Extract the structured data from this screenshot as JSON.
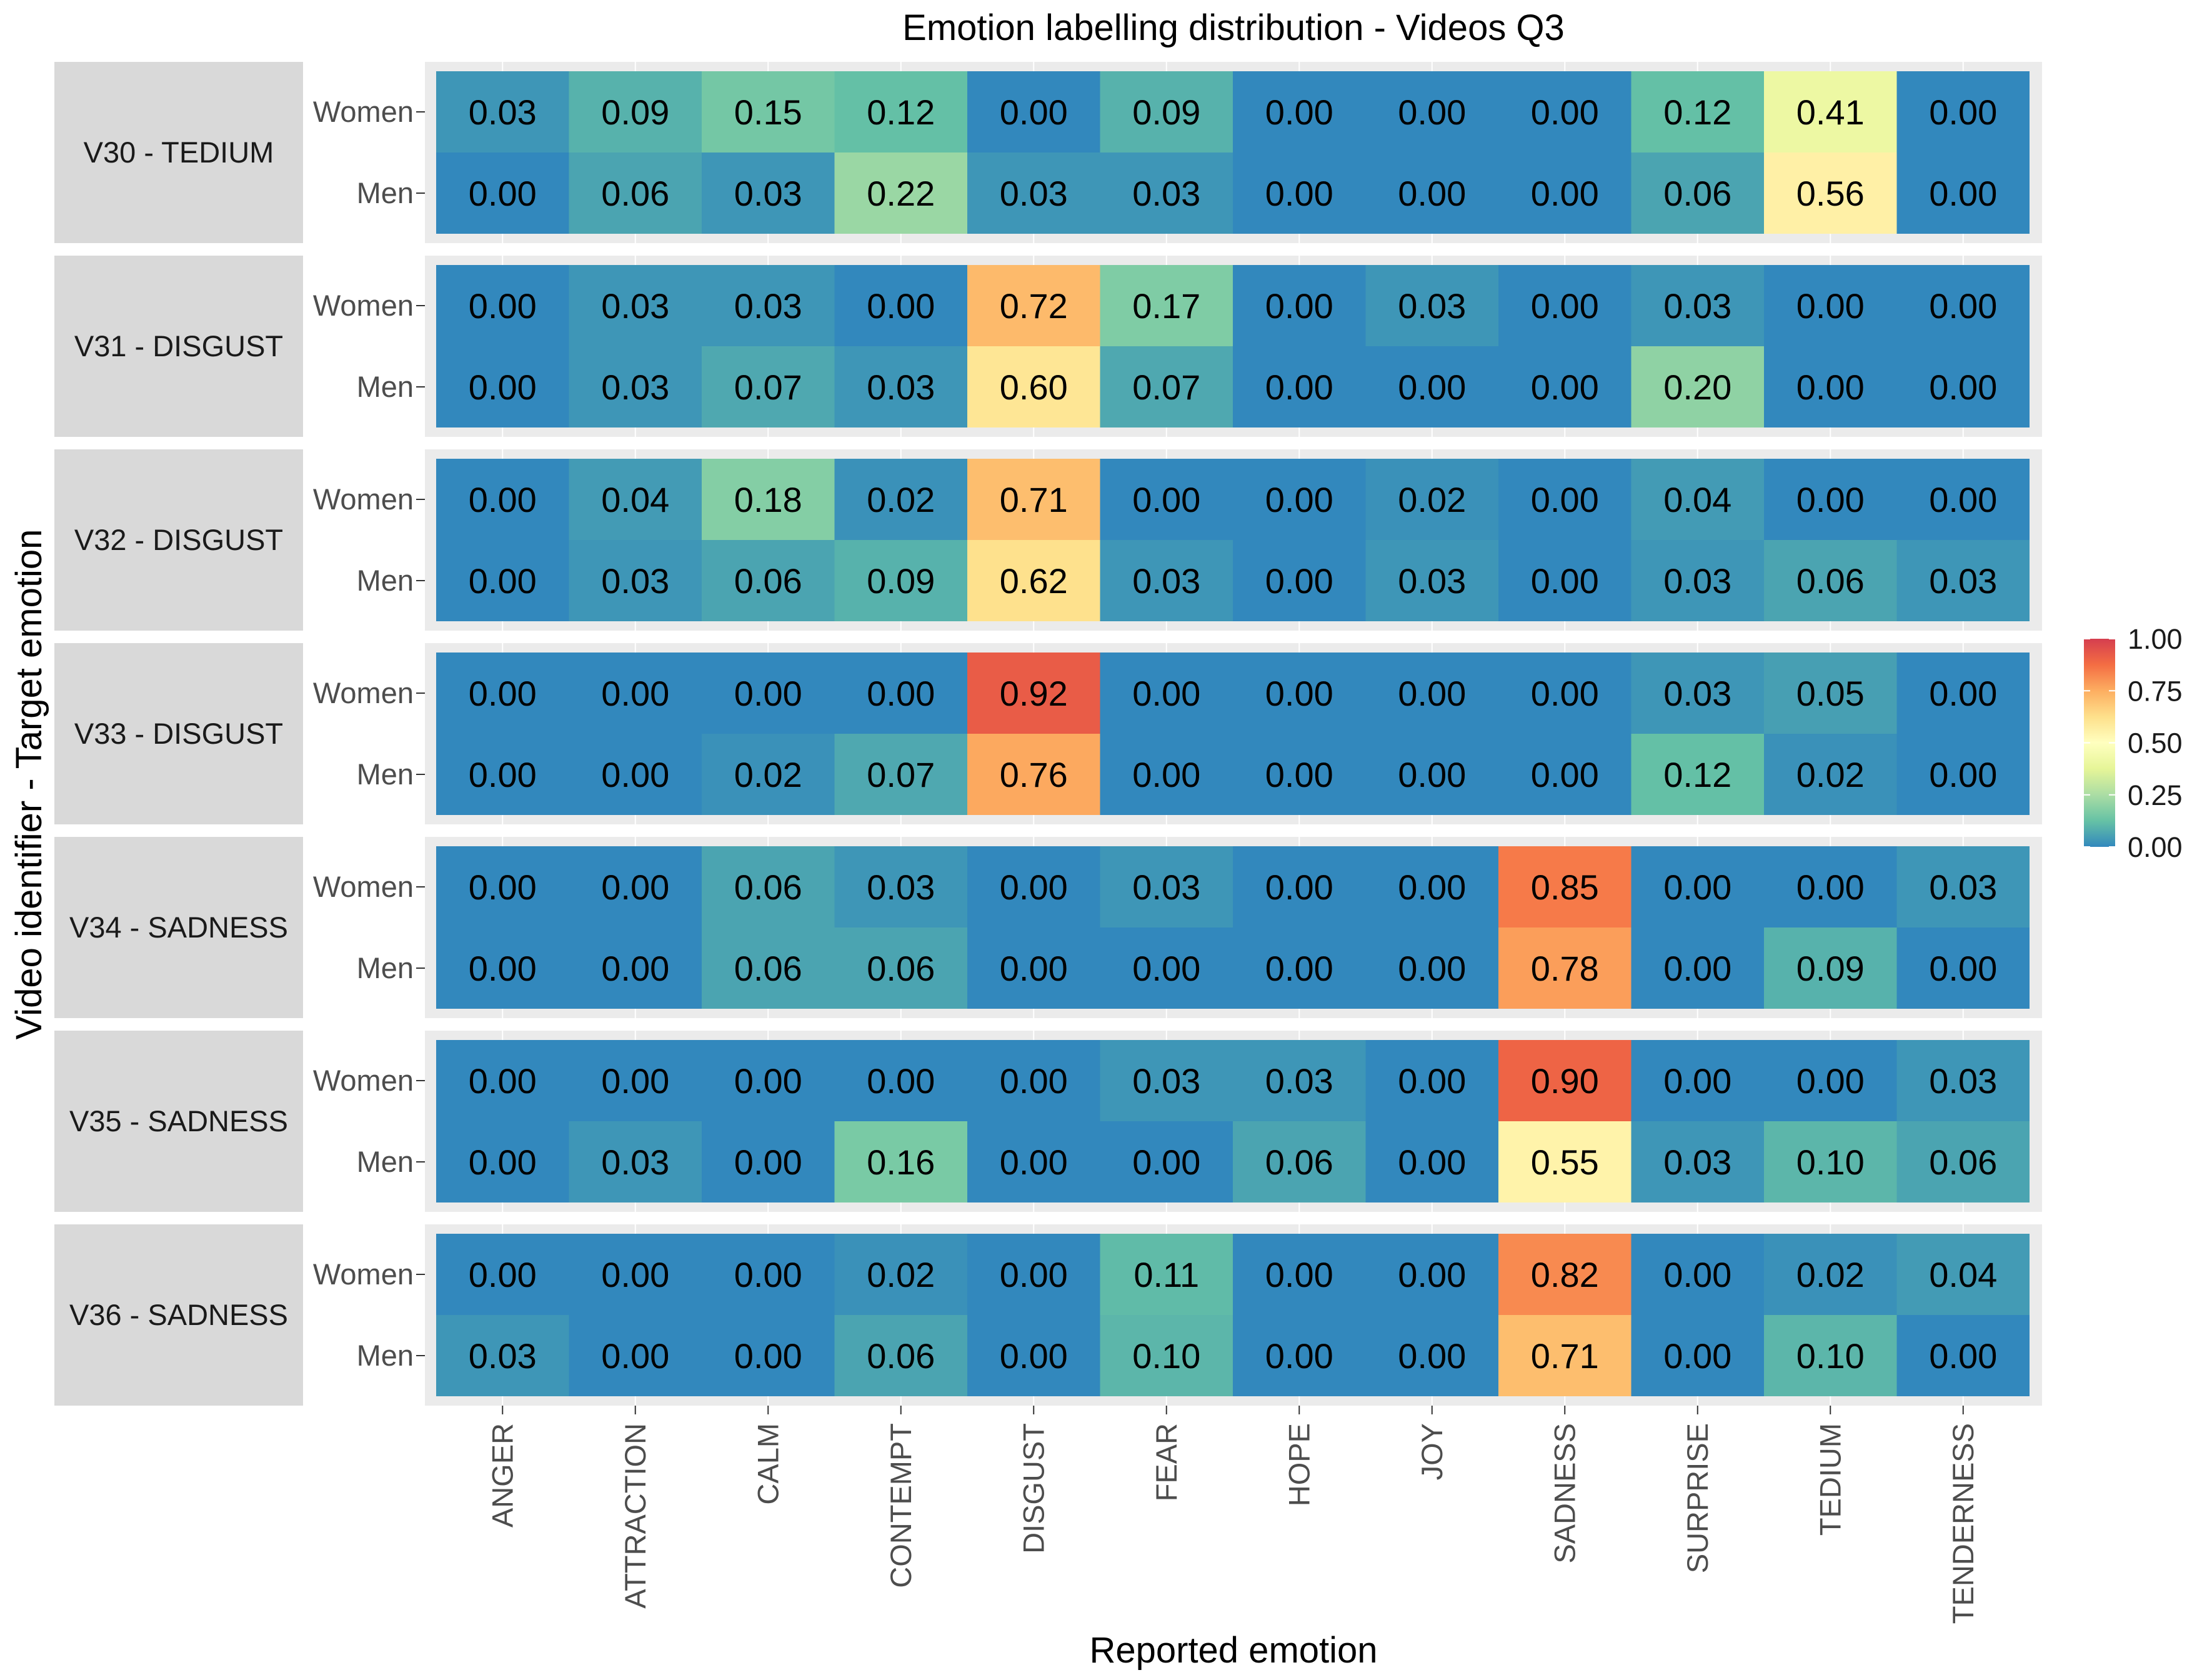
{
  "chart_data": {
    "type": "heatmap",
    "title": "Emotion labelling distribution - Videos Q3",
    "xlabel": "Reported emotion",
    "ylabel": "Video identifier - Target emotion",
    "categories": [
      "ANGER",
      "ATTRACTION",
      "CALM",
      "CONTEMPT",
      "DISGUST",
      "FEAR",
      "HOPE",
      "JOY",
      "SADNESS",
      "SURPRISE",
      "TEDIUM",
      "TENDERNESS"
    ],
    "row_labels": [
      "Women",
      "Men"
    ],
    "facets": [
      {
        "label": "V30 - TEDIUM",
        "rows": [
          {
            "name": "Women",
            "values": [
              0.03,
              0.09,
              0.15,
              0.12,
              0.0,
              0.09,
              0.0,
              0.0,
              0.0,
              0.12,
              0.41,
              0.0
            ]
          },
          {
            "name": "Men",
            "values": [
              0.0,
              0.06,
              0.03,
              0.22,
              0.03,
              0.03,
              0.0,
              0.0,
              0.0,
              0.06,
              0.56,
              0.0
            ]
          }
        ]
      },
      {
        "label": "V31 - DISGUST",
        "rows": [
          {
            "name": "Women",
            "values": [
              0.0,
              0.03,
              0.03,
              0.0,
              0.72,
              0.17,
              0.0,
              0.03,
              0.0,
              0.03,
              0.0,
              0.0
            ]
          },
          {
            "name": "Men",
            "values": [
              0.0,
              0.03,
              0.07,
              0.03,
              0.6,
              0.07,
              0.0,
              0.0,
              0.0,
              0.2,
              0.0,
              0.0
            ]
          }
        ]
      },
      {
        "label": "V32 - DISGUST",
        "rows": [
          {
            "name": "Women",
            "values": [
              0.0,
              0.04,
              0.18,
              0.02,
              0.71,
              0.0,
              0.0,
              0.02,
              0.0,
              0.04,
              0.0,
              0.0
            ]
          },
          {
            "name": "Men",
            "values": [
              0.0,
              0.03,
              0.06,
              0.09,
              0.62,
              0.03,
              0.0,
              0.03,
              0.0,
              0.03,
              0.06,
              0.03
            ]
          }
        ]
      },
      {
        "label": "V33 - DISGUST",
        "rows": [
          {
            "name": "Women",
            "values": [
              0.0,
              0.0,
              0.0,
              0.0,
              0.92,
              0.0,
              0.0,
              0.0,
              0.0,
              0.03,
              0.05,
              0.0
            ]
          },
          {
            "name": "Men",
            "values": [
              0.0,
              0.0,
              0.02,
              0.07,
              0.76,
              0.0,
              0.0,
              0.0,
              0.0,
              0.12,
              0.02,
              0.0
            ]
          }
        ]
      },
      {
        "label": "V34 - SADNESS",
        "rows": [
          {
            "name": "Women",
            "values": [
              0.0,
              0.0,
              0.06,
              0.03,
              0.0,
              0.03,
              0.0,
              0.0,
              0.85,
              0.0,
              0.0,
              0.03
            ]
          },
          {
            "name": "Men",
            "values": [
              0.0,
              0.0,
              0.06,
              0.06,
              0.0,
              0.0,
              0.0,
              0.0,
              0.78,
              0.0,
              0.09,
              0.0
            ]
          }
        ]
      },
      {
        "label": "V35 - SADNESS",
        "rows": [
          {
            "name": "Women",
            "values": [
              0.0,
              0.0,
              0.0,
              0.0,
              0.0,
              0.03,
              0.03,
              0.0,
              0.9,
              0.0,
              0.0,
              0.03
            ]
          },
          {
            "name": "Men",
            "values": [
              0.0,
              0.03,
              0.0,
              0.16,
              0.0,
              0.0,
              0.06,
              0.0,
              0.55,
              0.03,
              0.1,
              0.06
            ]
          }
        ]
      },
      {
        "label": "V36 - SADNESS",
        "rows": [
          {
            "name": "Women",
            "values": [
              0.0,
              0.0,
              0.0,
              0.02,
              0.0,
              0.11,
              0.0,
              0.0,
              0.82,
              0.0,
              0.02,
              0.04
            ]
          },
          {
            "name": "Men",
            "values": [
              0.03,
              0.0,
              0.0,
              0.06,
              0.0,
              0.1,
              0.0,
              0.0,
              0.71,
              0.0,
              0.1,
              0.0
            ]
          }
        ]
      }
    ],
    "color_scale": {
      "range": [
        0,
        1
      ],
      "stops": [
        "#3288bd",
        "#66c2a5",
        "#abdda4",
        "#e6f598",
        "#ffffbf",
        "#fee08b",
        "#fdae61",
        "#f46d43",
        "#d53e4f"
      ],
      "ticks": [
        "0.00",
        "0.25",
        "0.50",
        "0.75",
        "1.00"
      ]
    },
    "legend_position": "right"
  }
}
